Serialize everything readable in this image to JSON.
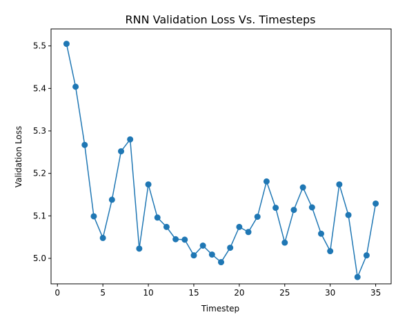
{
  "chart_data": {
    "type": "line",
    "title": "RNN Validation Loss Vs. Timesteps",
    "xlabel": "Timestep",
    "ylabel": "Validation Loss",
    "xlim": [
      -0.7,
      36.7
    ],
    "ylim": [
      4.94,
      5.54
    ],
    "xticks": [
      0,
      5,
      10,
      15,
      20,
      25,
      30,
      35
    ],
    "xtick_labels": [
      "0",
      "5",
      "10",
      "15",
      "20",
      "25",
      "30",
      "35"
    ],
    "yticks": [
      5.0,
      5.1,
      5.2,
      5.3,
      5.4,
      5.5
    ],
    "ytick_labels": [
      "5.0",
      "5.1",
      "5.2",
      "5.3",
      "5.4",
      "5.5"
    ],
    "grid": false,
    "legend": "none",
    "series": [
      {
        "color": "#1f77b4",
        "marker": "circle",
        "x": [
          1,
          2,
          3,
          4,
          5,
          6,
          7,
          8,
          9,
          10,
          11,
          12,
          13,
          14,
          15,
          16,
          17,
          18,
          19,
          20,
          21,
          22,
          23,
          24,
          25,
          26,
          27,
          28,
          29,
          30,
          31,
          32,
          33,
          34,
          35
        ],
        "y": [
          5.505,
          5.404,
          5.267,
          5.099,
          5.048,
          5.138,
          5.252,
          5.28,
          5.023,
          5.174,
          5.096,
          5.074,
          5.045,
          5.044,
          5.007,
          5.03,
          5.009,
          4.991,
          5.025,
          5.074,
          5.062,
          5.098,
          5.181,
          5.119,
          5.037,
          5.114,
          5.167,
          5.12,
          5.058,
          5.017,
          5.174,
          5.102,
          4.956,
          5.007,
          5.129
        ]
      }
    ]
  }
}
